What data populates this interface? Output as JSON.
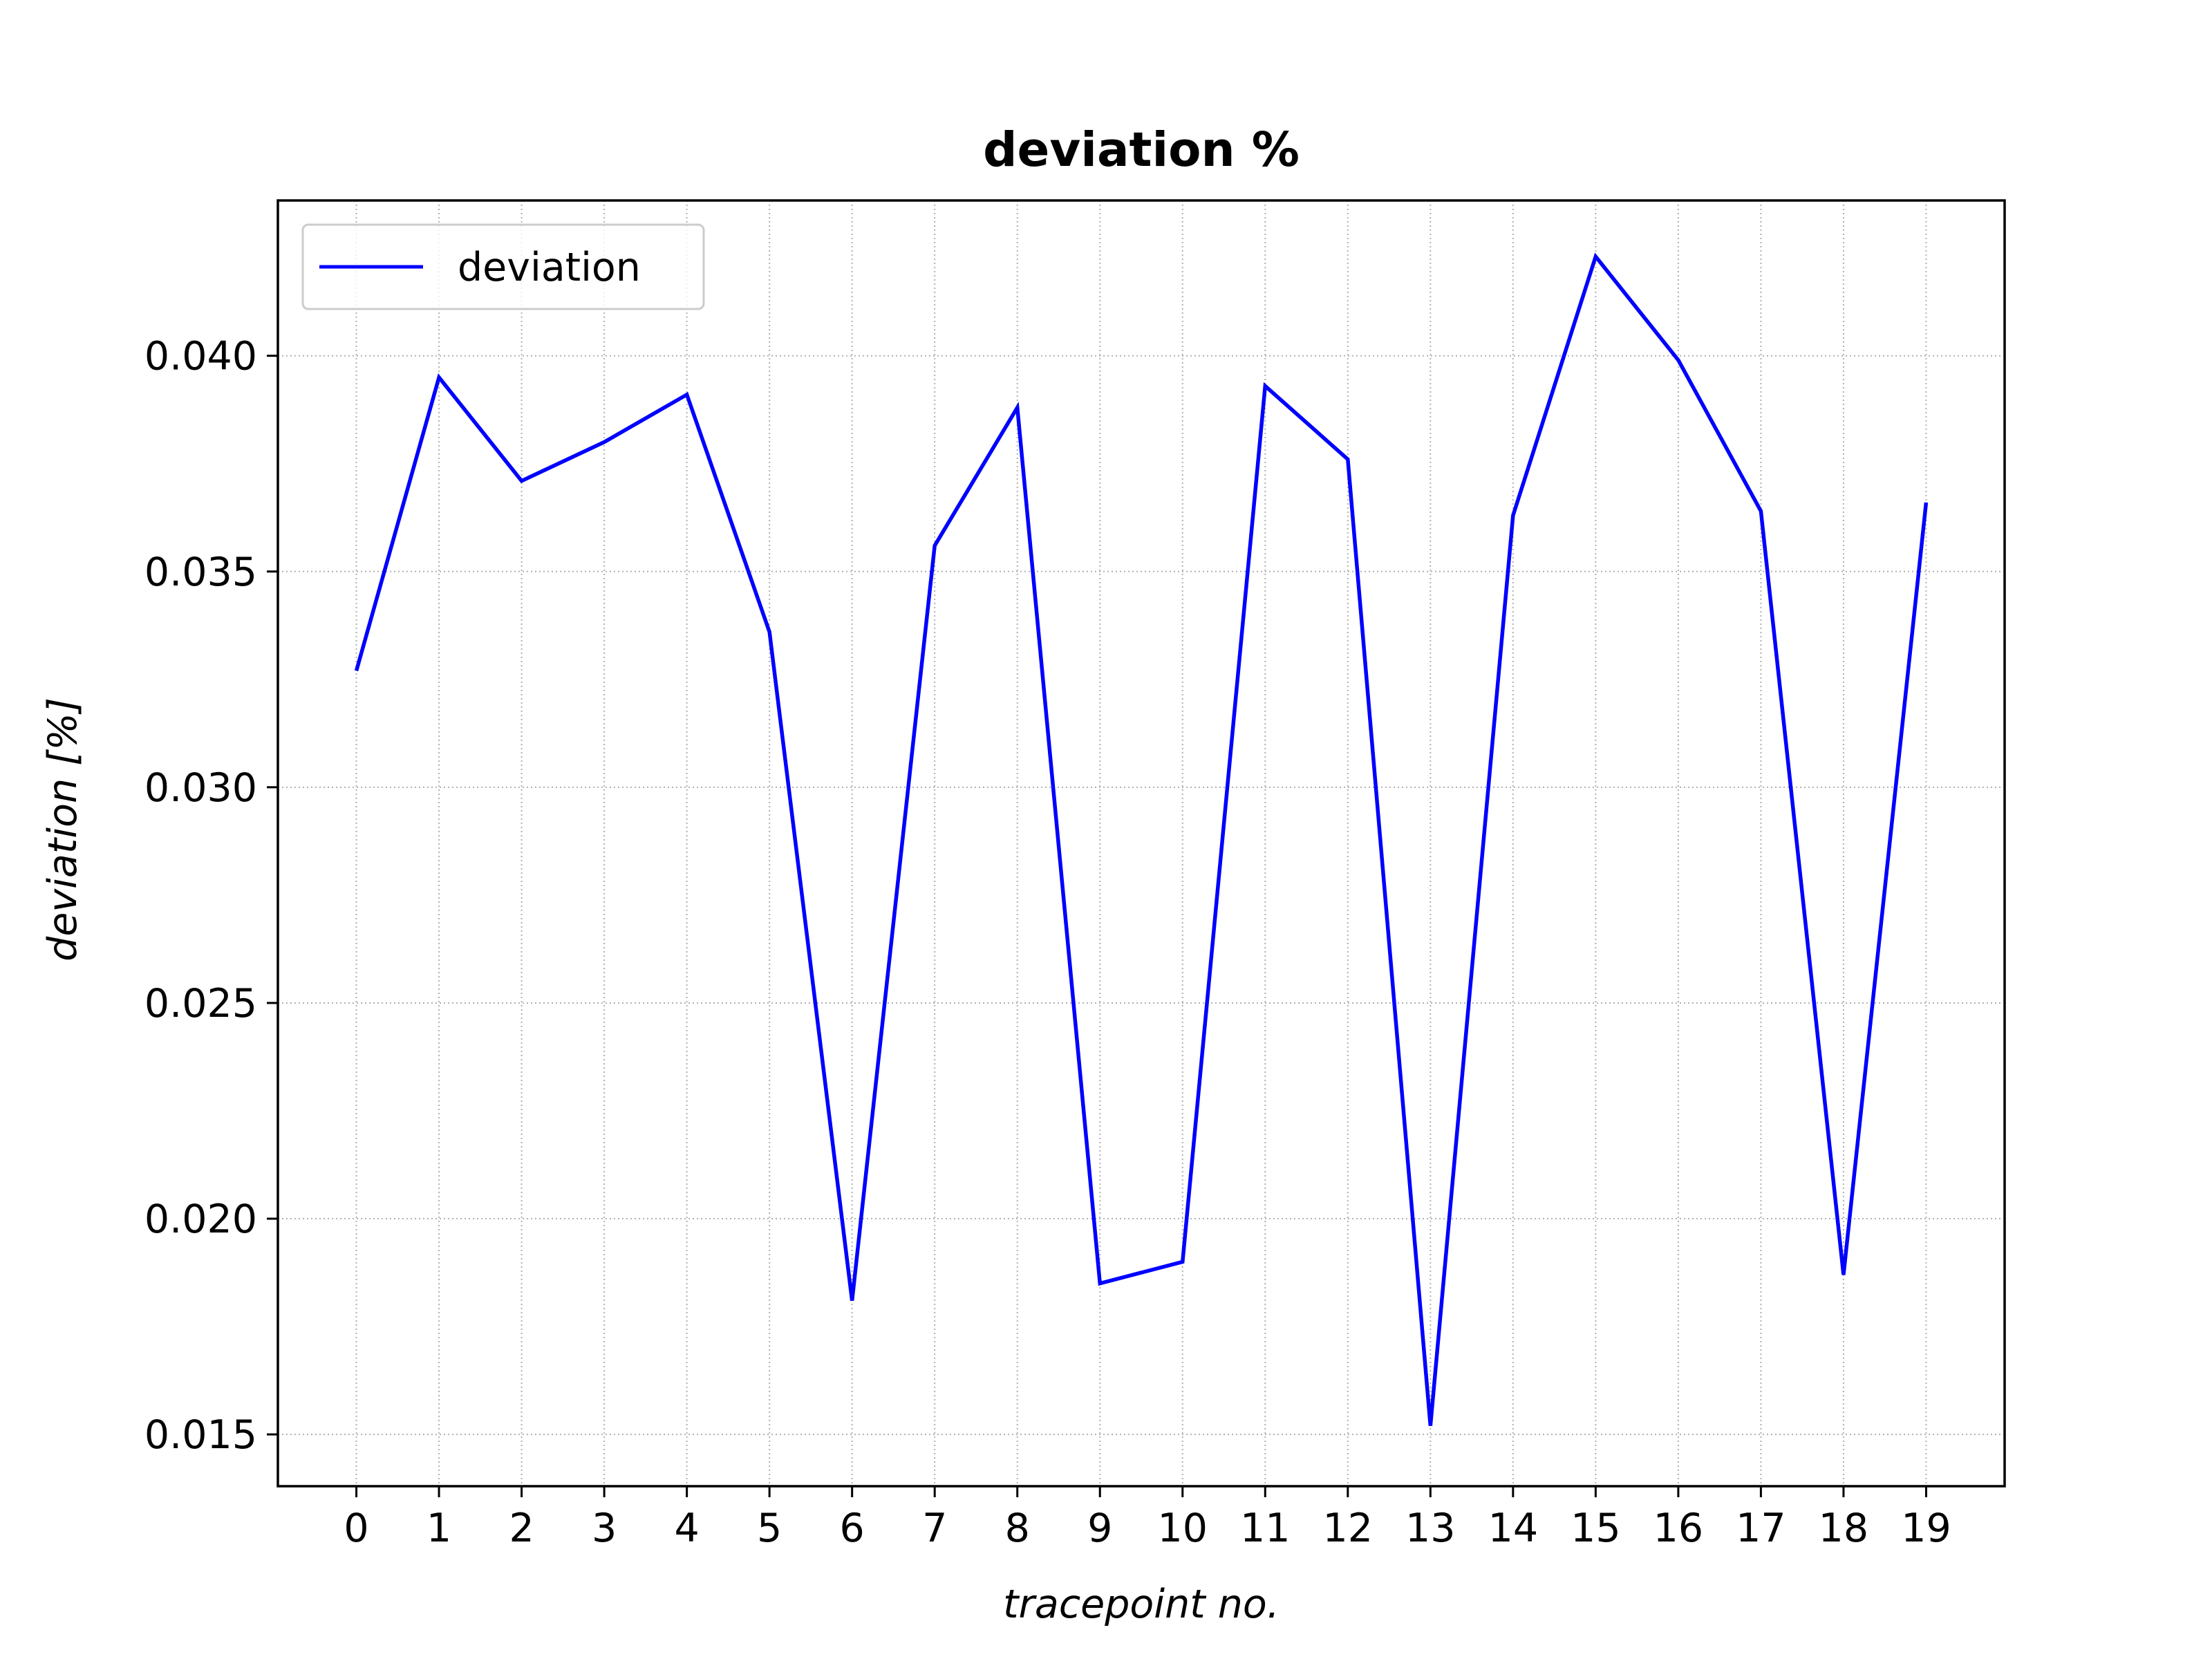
{
  "chart_data": {
    "type": "line",
    "title": "deviation %",
    "xlabel": "tracepoint no.",
    "ylabel": "deviation [%]",
    "x": [
      0,
      1,
      2,
      3,
      4,
      5,
      6,
      7,
      8,
      9,
      10,
      11,
      12,
      13,
      14,
      15,
      16,
      17,
      18,
      19
    ],
    "x_tick_labels": [
      "0",
      "1",
      "2",
      "3",
      "4",
      "5",
      "6",
      "7",
      "8",
      "9",
      "10",
      "11",
      "12",
      "13",
      "14",
      "15",
      "16",
      "17",
      "18",
      "19"
    ],
    "y_ticks": [
      0.015,
      0.02,
      0.025,
      0.03,
      0.035,
      0.04
    ],
    "y_tick_labels": [
      "0.015",
      "0.020",
      "0.025",
      "0.030",
      "0.035",
      "0.040"
    ],
    "xlim": [
      -0.95,
      19.95
    ],
    "ylim": [
      0.0138,
      0.0436
    ],
    "grid": true,
    "legend_position": "top-left",
    "series": [
      {
        "name": "deviation",
        "color": "#0000ff",
        "values": [
          0.0327,
          0.0395,
          0.0371,
          0.038,
          0.0391,
          0.0336,
          0.0181,
          0.0356,
          0.0388,
          0.0185,
          0.019,
          0.0393,
          0.0376,
          0.0152,
          0.0363,
          0.0423,
          0.0399,
          0.0364,
          0.0187,
          0.0366
        ]
      }
    ]
  }
}
